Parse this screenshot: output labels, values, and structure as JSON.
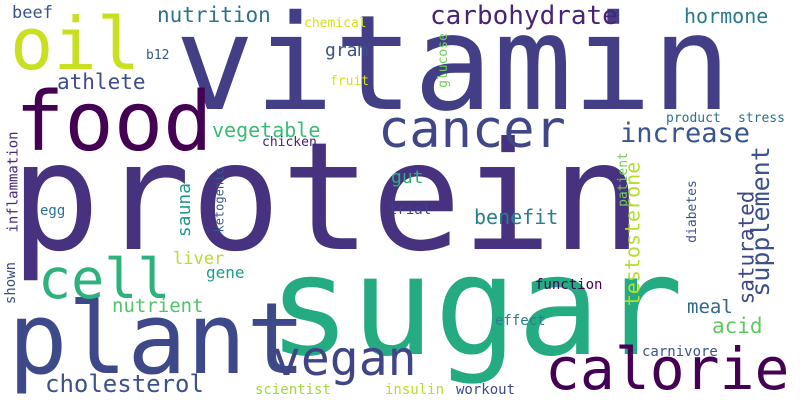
{
  "colors": {
    "background": "#ffffff",
    "palette": [
      "#440154",
      "#482878",
      "#3e4989",
      "#31688e",
      "#26828e",
      "#1f9e89",
      "#35b779",
      "#6ece58",
      "#b5de2b",
      "#fde725"
    ]
  },
  "words": [
    {
      "text": "protein",
      "color": "#46327e"
    },
    {
      "text": "vitamin",
      "color": "#433e85"
    },
    {
      "text": "sugar",
      "color": "#25ab82"
    },
    {
      "text": "plant",
      "color": "#3e4989"
    },
    {
      "text": "food",
      "color": "#440154"
    },
    {
      "text": "oil",
      "color": "#c8e020"
    },
    {
      "text": "cancer",
      "color": "#404688"
    },
    {
      "text": "calorie",
      "color": "#440154"
    },
    {
      "text": "cell",
      "color": "#2db27d"
    },
    {
      "text": "vegan",
      "color": "#414487"
    },
    {
      "text": "carbohydrate",
      "color": "#482475"
    },
    {
      "text": "increase",
      "color": "#39558c"
    },
    {
      "text": "supplement",
      "color": "#3b528b"
    },
    {
      "text": "cholesterol",
      "color": "#3b528b"
    },
    {
      "text": "testosterone",
      "color": "#b5de2b"
    },
    {
      "text": "saturated",
      "color": "#3f4788"
    },
    {
      "text": "nutrition",
      "color": "#2c728e"
    },
    {
      "text": "hormone",
      "color": "#2a788e"
    },
    {
      "text": "athlete",
      "color": "#3e4c8a"
    },
    {
      "text": "vegetable",
      "color": "#3bbb75"
    },
    {
      "text": "benefit",
      "color": "#287d8e"
    },
    {
      "text": "acid",
      "color": "#5ec962"
    },
    {
      "text": "nutrient",
      "color": "#52c569"
    },
    {
      "text": "sauna",
      "color": "#1f9e89"
    },
    {
      "text": "meal",
      "color": "#31688e"
    },
    {
      "text": "gram",
      "color": "#3b528b"
    },
    {
      "text": "gut",
      "color": "#2ab07f"
    },
    {
      "text": "beef",
      "color": "#3b528b"
    },
    {
      "text": "liver",
      "color": "#b5de2b"
    },
    {
      "text": "gene",
      "color": "#1f9e89"
    },
    {
      "text": "chemical",
      "color": "#d8e219"
    },
    {
      "text": "fruit",
      "color": "#d8e219"
    },
    {
      "text": "b12",
      "color": "#39558c"
    },
    {
      "text": "glucose",
      "color": "#6ece58"
    },
    {
      "text": "chicken",
      "color": "#481f70"
    },
    {
      "text": "product",
      "color": "#2c728e"
    },
    {
      "text": "stress",
      "color": "#2c728e"
    },
    {
      "text": "patient",
      "color": "#6ece58"
    },
    {
      "text": "diabetes",
      "color": "#3b528b"
    },
    {
      "text": "ketogenic",
      "color": "#365c8d"
    },
    {
      "text": "inflammation",
      "color": "#482878"
    },
    {
      "text": "shown",
      "color": "#3e4989"
    },
    {
      "text": "egg",
      "color": "#2c728e"
    },
    {
      "text": "trial",
      "color": "#424086"
    },
    {
      "text": "function",
      "color": "#440154"
    },
    {
      "text": "effect",
      "color": "#277f8e"
    },
    {
      "text": "carnivore",
      "color": "#3b528b"
    },
    {
      "text": "scientist",
      "color": "#a0da39"
    },
    {
      "text": "insulin",
      "color": "#b5de2b"
    },
    {
      "text": "workout",
      "color": "#3e4989"
    }
  ]
}
